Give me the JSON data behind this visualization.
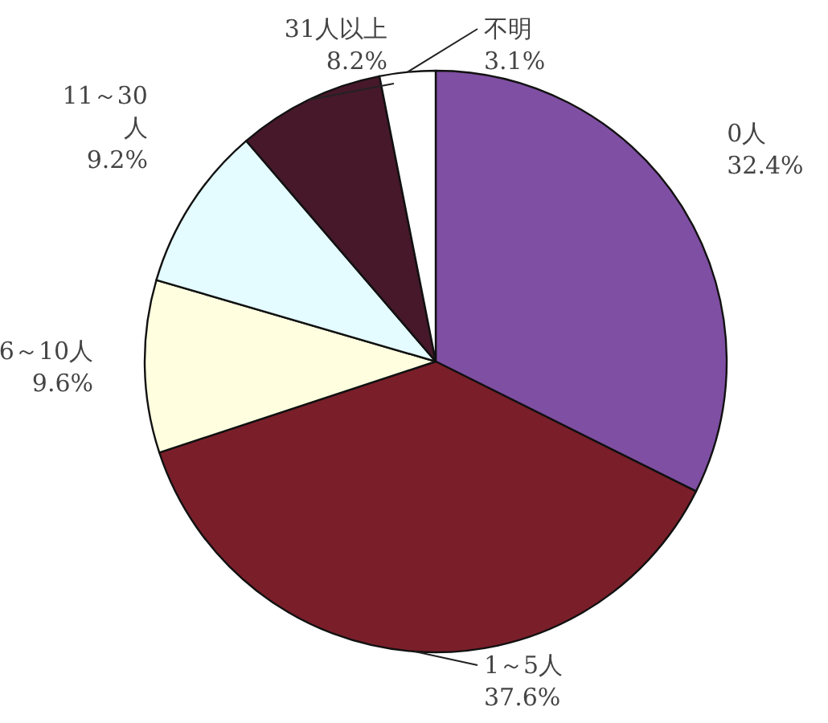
{
  "chart_data": {
    "type": "pie",
    "categories": [
      "0人",
      "1～5人",
      "6～10人",
      "11～30人",
      "31人以上",
      "不明"
    ],
    "values": [
      32.4,
      37.6,
      9.6,
      9.2,
      8.2,
      3.1
    ],
    "value_labels": [
      "32.4%",
      "37.6%",
      "9.6%",
      "9.2%",
      "8.2%",
      "3.1%"
    ],
    "colors": [
      "#7f4fa3",
      "#7a1f2a",
      "#ffffe0",
      "#e4fbff",
      "#46182a",
      "#ffffff"
    ]
  }
}
